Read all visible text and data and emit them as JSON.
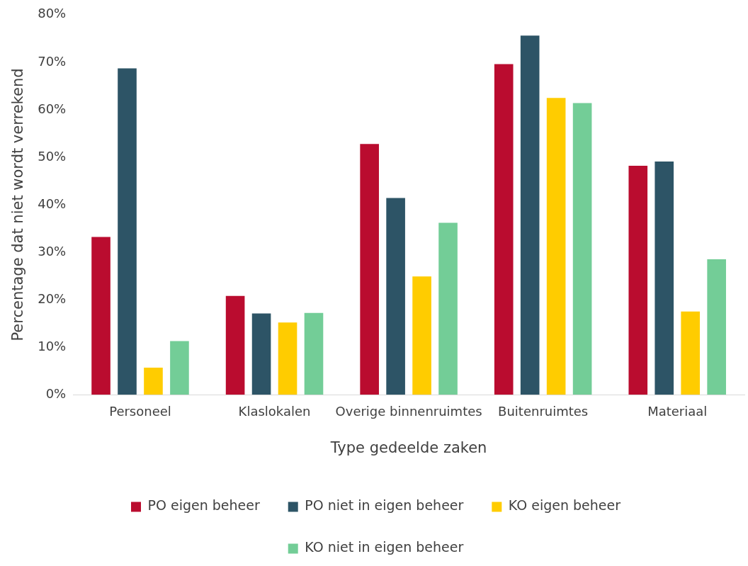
{
  "chart_data": {
    "type": "bar",
    "xlabel": "Type gedeelde zaken",
    "ylabel": "Percentage dat niet wordt verrekend",
    "categories": [
      "Personeel",
      "Klaslokalen",
      "Overige binnenruimtes",
      "Buitenruimtes",
      "Materiaal"
    ],
    "series": [
      {
        "name": "PO eigen beheer",
        "color": "#ba0c2f",
        "values": [
          33.2,
          20.8,
          52.8,
          69.6,
          48.2
        ]
      },
      {
        "name": "PO niet in eigen beheer",
        "color": "#2d5466",
        "values": [
          68.7,
          17.1,
          41.4,
          75.6,
          49.1
        ]
      },
      {
        "name": "KO eigen beheer",
        "color": "#ffcc00",
        "values": [
          5.7,
          15.2,
          24.9,
          62.5,
          17.5
        ]
      },
      {
        "name": "KO niet in eigen beheer",
        "color": "#73cd97",
        "values": [
          11.3,
          17.2,
          36.2,
          61.4,
          28.5
        ]
      }
    ],
    "ylim": [
      0,
      80
    ],
    "yticks": [
      {
        "value": 0,
        "label": "0%"
      },
      {
        "value": 10,
        "label": "10%"
      },
      {
        "value": 20,
        "label": "20%"
      },
      {
        "value": 30,
        "label": "30%"
      },
      {
        "value": 40,
        "label": "40%"
      },
      {
        "value": 50,
        "label": "50%"
      },
      {
        "value": 60,
        "label": "60%"
      },
      {
        "value": 70,
        "label": "70%"
      },
      {
        "value": 80,
        "label": "80%"
      }
    ],
    "grid": false,
    "legend": "bottom"
  }
}
